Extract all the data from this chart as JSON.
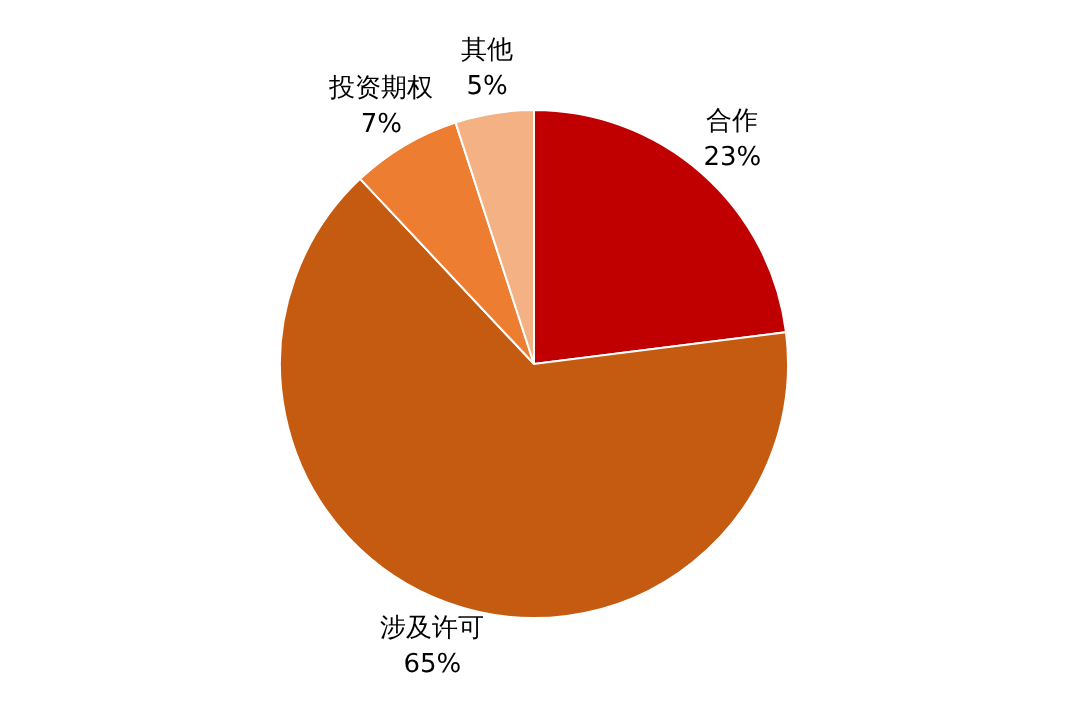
{
  "chart_data": {
    "type": "pie",
    "categories": [
      "合作",
      "涉及许可",
      "投资期权",
      "其他"
    ],
    "values": [
      23,
      65,
      7,
      5
    ],
    "colors": [
      "#c00000",
      "#c55a11",
      "#ed7d31",
      "#f4b183"
    ],
    "value_labels": [
      "23%",
      "65%",
      "7%",
      "5%"
    ]
  }
}
